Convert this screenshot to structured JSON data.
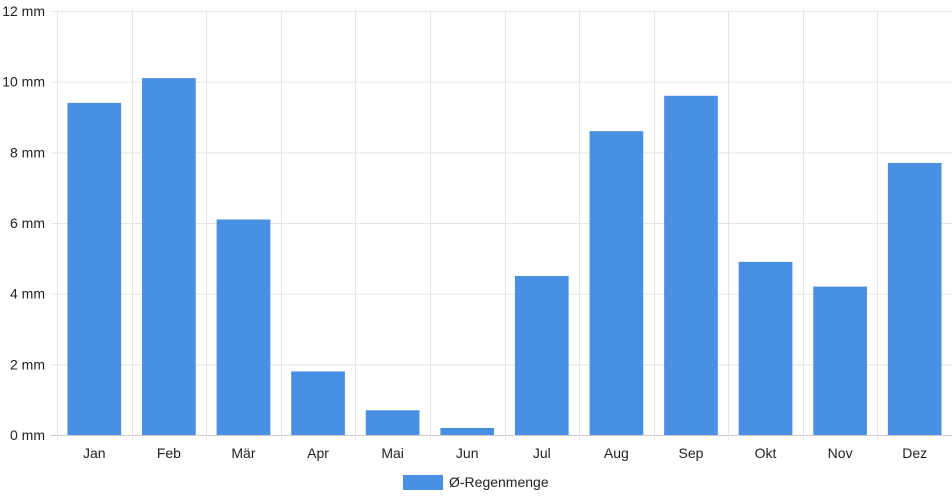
{
  "chart_data": {
    "type": "bar",
    "categories": [
      "Jan",
      "Feb",
      "Mär",
      "Apr",
      "Mai",
      "Jun",
      "Jul",
      "Aug",
      "Sep",
      "Okt",
      "Nov",
      "Dez"
    ],
    "series": [
      {
        "name": "Ø-Regenmenge",
        "values": [
          9.4,
          10.1,
          6.1,
          1.8,
          0.7,
          0.2,
          4.5,
          8.6,
          9.6,
          4.9,
          4.2,
          7.7
        ],
        "color": "#4a90e2"
      }
    ],
    "ylim": [
      0,
      12
    ],
    "yticks": [
      0,
      2,
      4,
      6,
      8,
      10,
      12
    ],
    "ytick_suffix": " mm",
    "grid": true,
    "legend_position": "bottom-center",
    "grid_color": "#e5e5e5"
  }
}
